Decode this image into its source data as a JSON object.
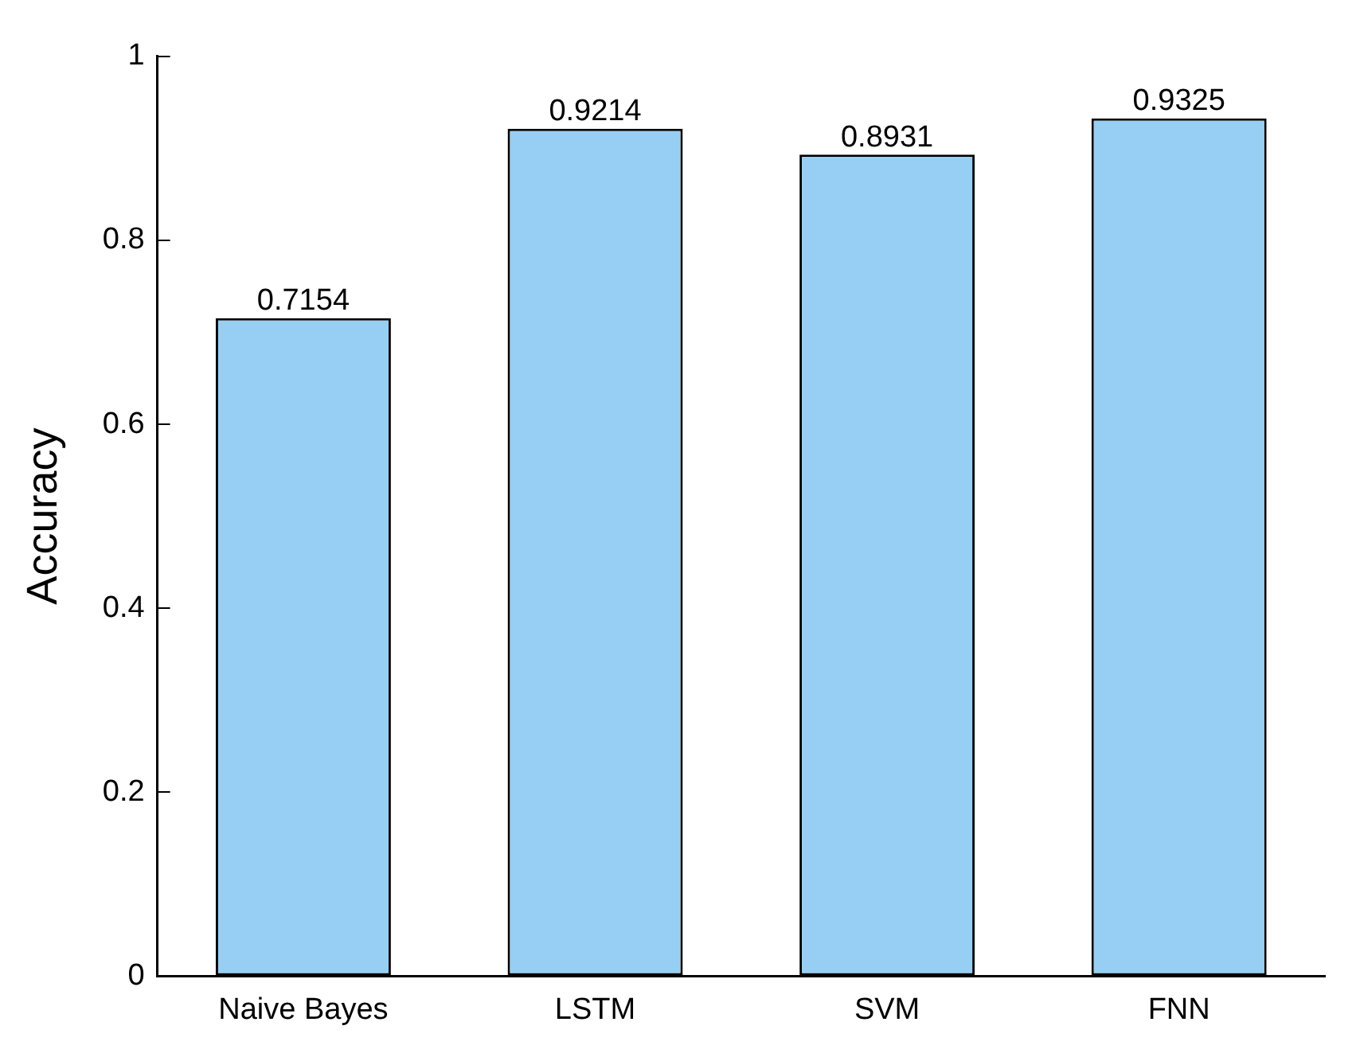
{
  "chart_data": {
    "type": "bar",
    "ylabel": "Accuracy",
    "categories": [
      "Naive Bayes",
      "LSTM",
      "SVM",
      "FNN"
    ],
    "values": [
      0.7154,
      0.9214,
      0.8931,
      0.9325
    ],
    "color": "#96cff3",
    "ylim": [
      0,
      1
    ],
    "yticks": [
      0,
      0.2,
      0.4,
      0.6,
      0.8,
      1
    ],
    "grid": false,
    "legend": false,
    "data_labels": true
  }
}
